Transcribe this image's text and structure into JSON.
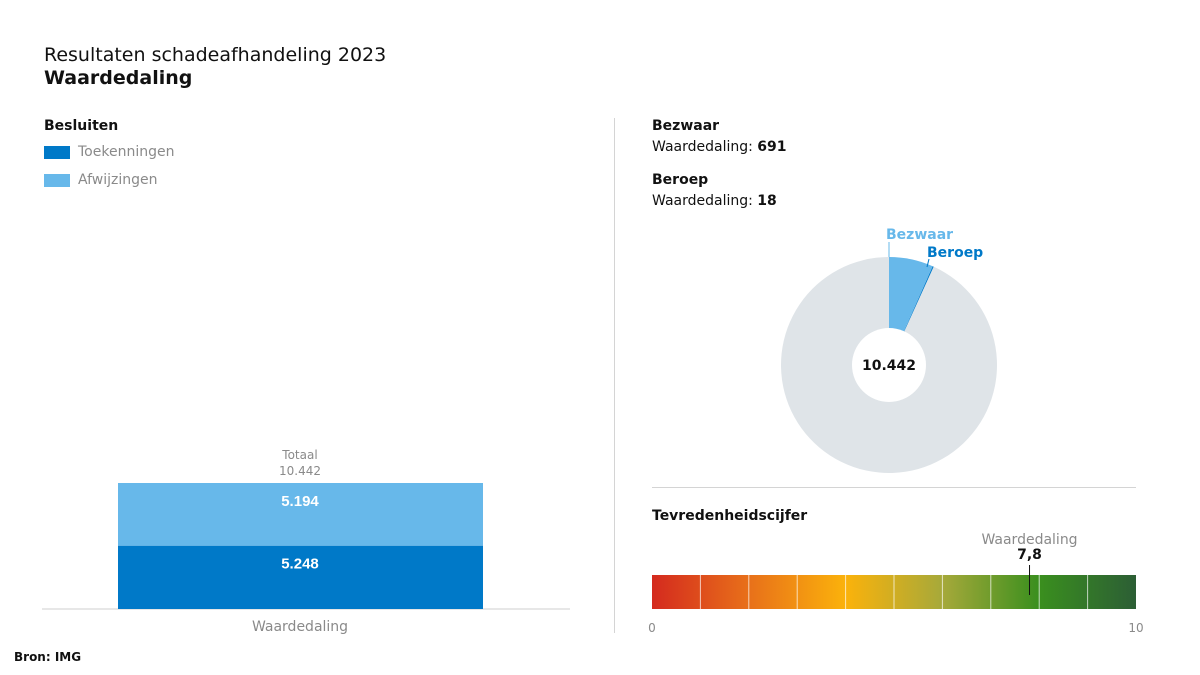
{
  "header": {
    "title": "Resultaten schadeafhandeling 2023",
    "subtitle": "Waardedaling"
  },
  "left": {
    "section_label": "Besluiten",
    "legend": [
      {
        "label": "Toekenningen",
        "color": "#0079c8"
      },
      {
        "label": "Afwijzingen",
        "color": "#67b8ea"
      }
    ]
  },
  "right": {
    "bezwaar_title": "Bezwaar",
    "bezwaar_prefix": "Waardedaling: ",
    "bezwaar_value": "691",
    "beroep_title": "Beroep",
    "beroep_prefix": "Waardedaling: ",
    "beroep_value": "18",
    "satisfaction_title": "Tevredenheidscijfer"
  },
  "source": "Bron: IMG",
  "chart_data": [
    {
      "type": "bar",
      "stacked": true,
      "categories": [
        "Waardedaling"
      ],
      "series": [
        {
          "name": "Toekenningen",
          "values": [
            5248
          ],
          "value_labels": [
            "5.248"
          ],
          "color": "#0079c8"
        },
        {
          "name": "Afwijzingen",
          "values": [
            5194
          ],
          "value_labels": [
            "5.194"
          ],
          "color": "#67b8ea"
        }
      ],
      "total_label": "Totaal",
      "total_value": "10.442",
      "ylim": [
        0,
        10442
      ]
    },
    {
      "type": "pie",
      "donut": true,
      "total": 10442,
      "center_label": "10.442",
      "slices": [
        {
          "name": "Bezwaar",
          "value": 691,
          "color": "#67b8ea"
        },
        {
          "name": "Beroep",
          "value": 18,
          "color": "#0079c8"
        },
        {
          "name": "",
          "value": 9733,
          "color": "#dfe4e8"
        }
      ]
    },
    {
      "type": "gauge",
      "category": "Waardedaling",
      "value": 7.8,
      "value_label": "7,8",
      "range": [
        0,
        10
      ],
      "tick_labels": [
        "0",
        "10"
      ],
      "gradient_colors": [
        "#d42a1e",
        "#e8701a",
        "#fbb20b",
        "#a6a93a",
        "#3a8f1e",
        "#2c5e35"
      ]
    }
  ]
}
